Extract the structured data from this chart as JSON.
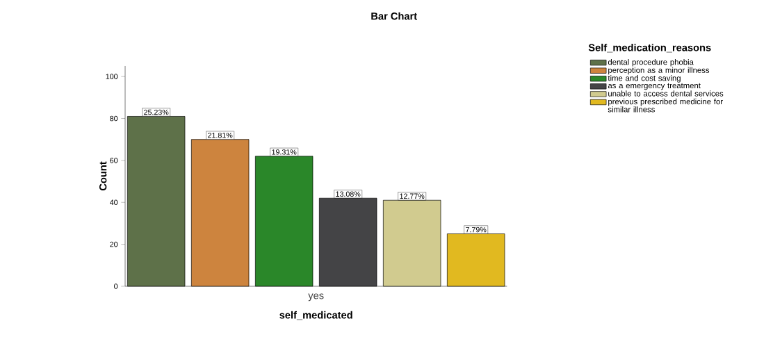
{
  "chart_data": {
    "type": "bar",
    "title": "Bar Chart",
    "xlabel": "self_medicated",
    "ylabel": "Count",
    "legend_title": "Self_medication_reasons",
    "categories": [
      "yes"
    ],
    "series": [
      {
        "name": "dental procedure phobia",
        "color": "#5e7149",
        "values": [
          81
        ]
      },
      {
        "name": "perception as a minor illness",
        "color": "#cd843e",
        "values": [
          70
        ]
      },
      {
        "name": "time and cost saving",
        "color": "#2a8729",
        "values": [
          62
        ]
      },
      {
        "name": "as a emergency treatment",
        "color": "#444446",
        "values": [
          42
        ]
      },
      {
        "name": "unable to access dental services",
        "color": "#d1cb8f",
        "values": [
          41
        ]
      },
      {
        "name": "previous prescribed medicine for similar illness",
        "color": "#e1b920",
        "values": [
          25
        ]
      }
    ],
    "annotations": [
      "25.23%",
      "21.81%",
      "19.31%",
      "13.08%",
      "12.77%",
      "7.79%"
    ],
    "ylim": [
      0,
      105
    ],
    "yticks": [
      0,
      20,
      40,
      60,
      80,
      100
    ],
    "legend": "top right"
  }
}
